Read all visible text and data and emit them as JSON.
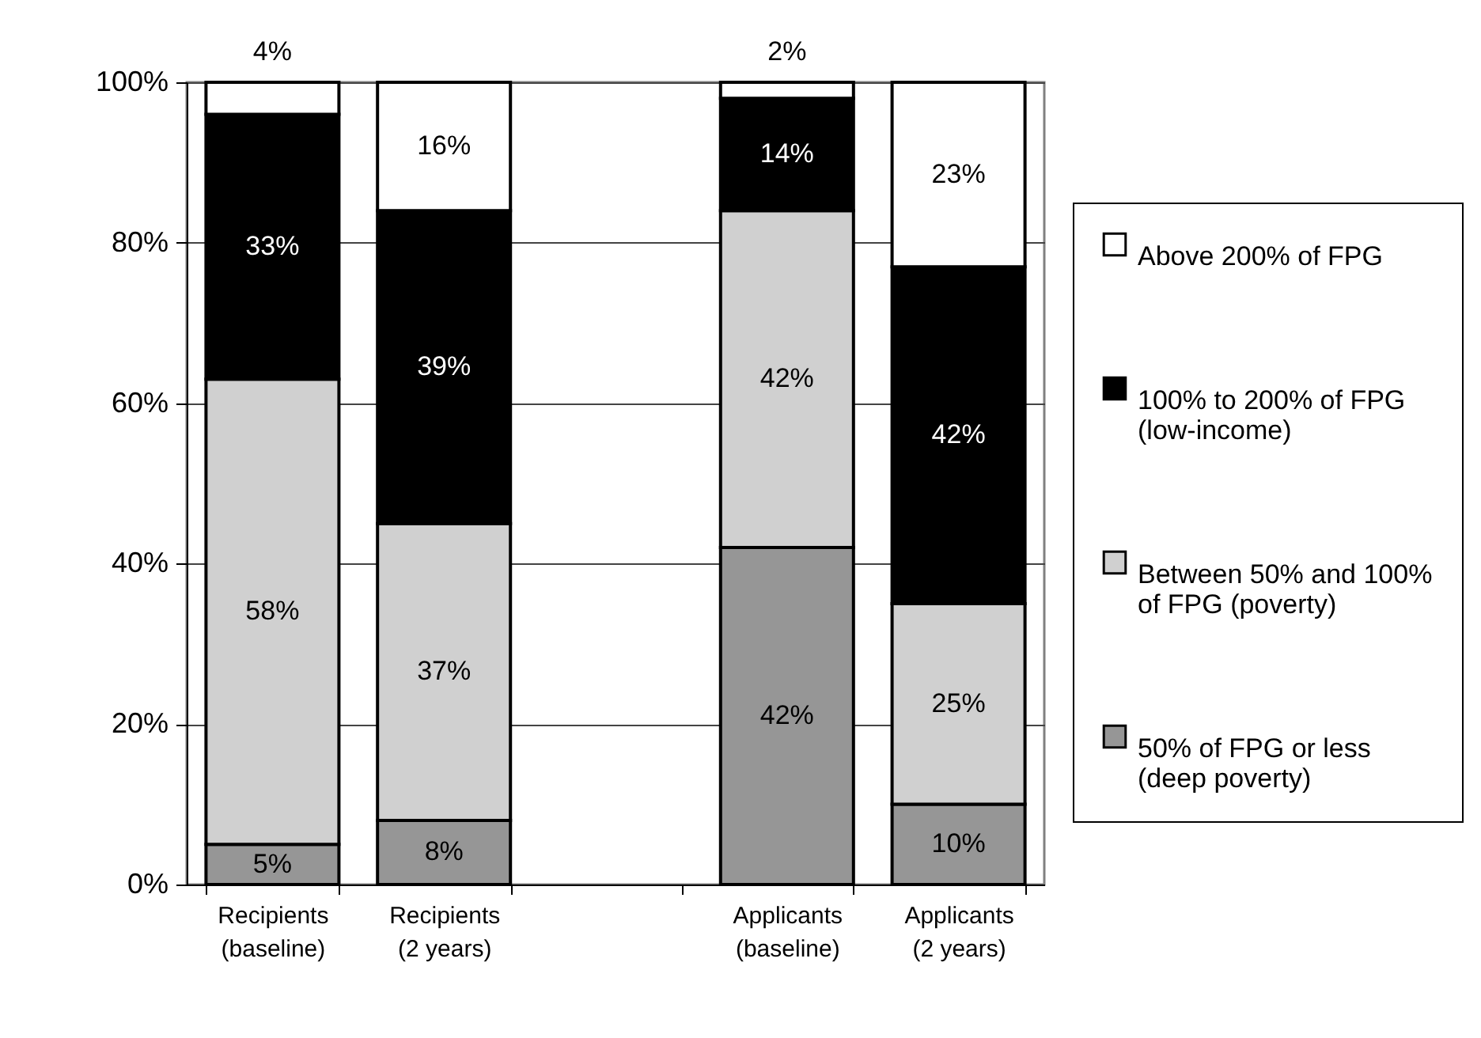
{
  "chart_data": {
    "type": "bar",
    "stacked": true,
    "categories": [
      "Recipients\n(baseline)",
      "Recipients\n(2 years)",
      null,
      "Applicants\n(baseline)",
      "Applicants\n(2 years)"
    ],
    "series": [
      {
        "name": "50% of FPG or less\n(deep poverty)",
        "color": "#969696",
        "values": [
          5,
          8,
          null,
          42,
          10
        ],
        "value_labels": [
          "5%",
          "8%",
          null,
          "42%",
          "10%"
        ]
      },
      {
        "name": "Between 50% and 100%\nof FPG (poverty)",
        "color": "#d0d0d0",
        "values": [
          58,
          37,
          null,
          42,
          25
        ],
        "value_labels": [
          "58%",
          "37%",
          null,
          "42%",
          "25%"
        ]
      },
      {
        "name": "100% to 200% of FPG\n(low-income)",
        "color": "#000000",
        "values": [
          33,
          39,
          null,
          14,
          42
        ],
        "value_labels": [
          "33%",
          "39%",
          null,
          "14%",
          "42%"
        ]
      },
      {
        "name": "Above 200% of FPG",
        "color": "#ffffff",
        "values": [
          4,
          16,
          null,
          2,
          23
        ],
        "value_labels": [
          "4%",
          "16%",
          null,
          "2%",
          "23%"
        ]
      }
    ],
    "ylim": [
      0,
      100
    ],
    "yticks": [
      {
        "value": 0,
        "label": "0%"
      },
      {
        "value": 20,
        "label": "20%"
      },
      {
        "value": 40,
        "label": "40%"
      },
      {
        "value": 60,
        "label": "60%"
      },
      {
        "value": 80,
        "label": "80%"
      },
      {
        "value": 100,
        "label": "100%"
      }
    ],
    "grid": "y",
    "legend": "right"
  }
}
